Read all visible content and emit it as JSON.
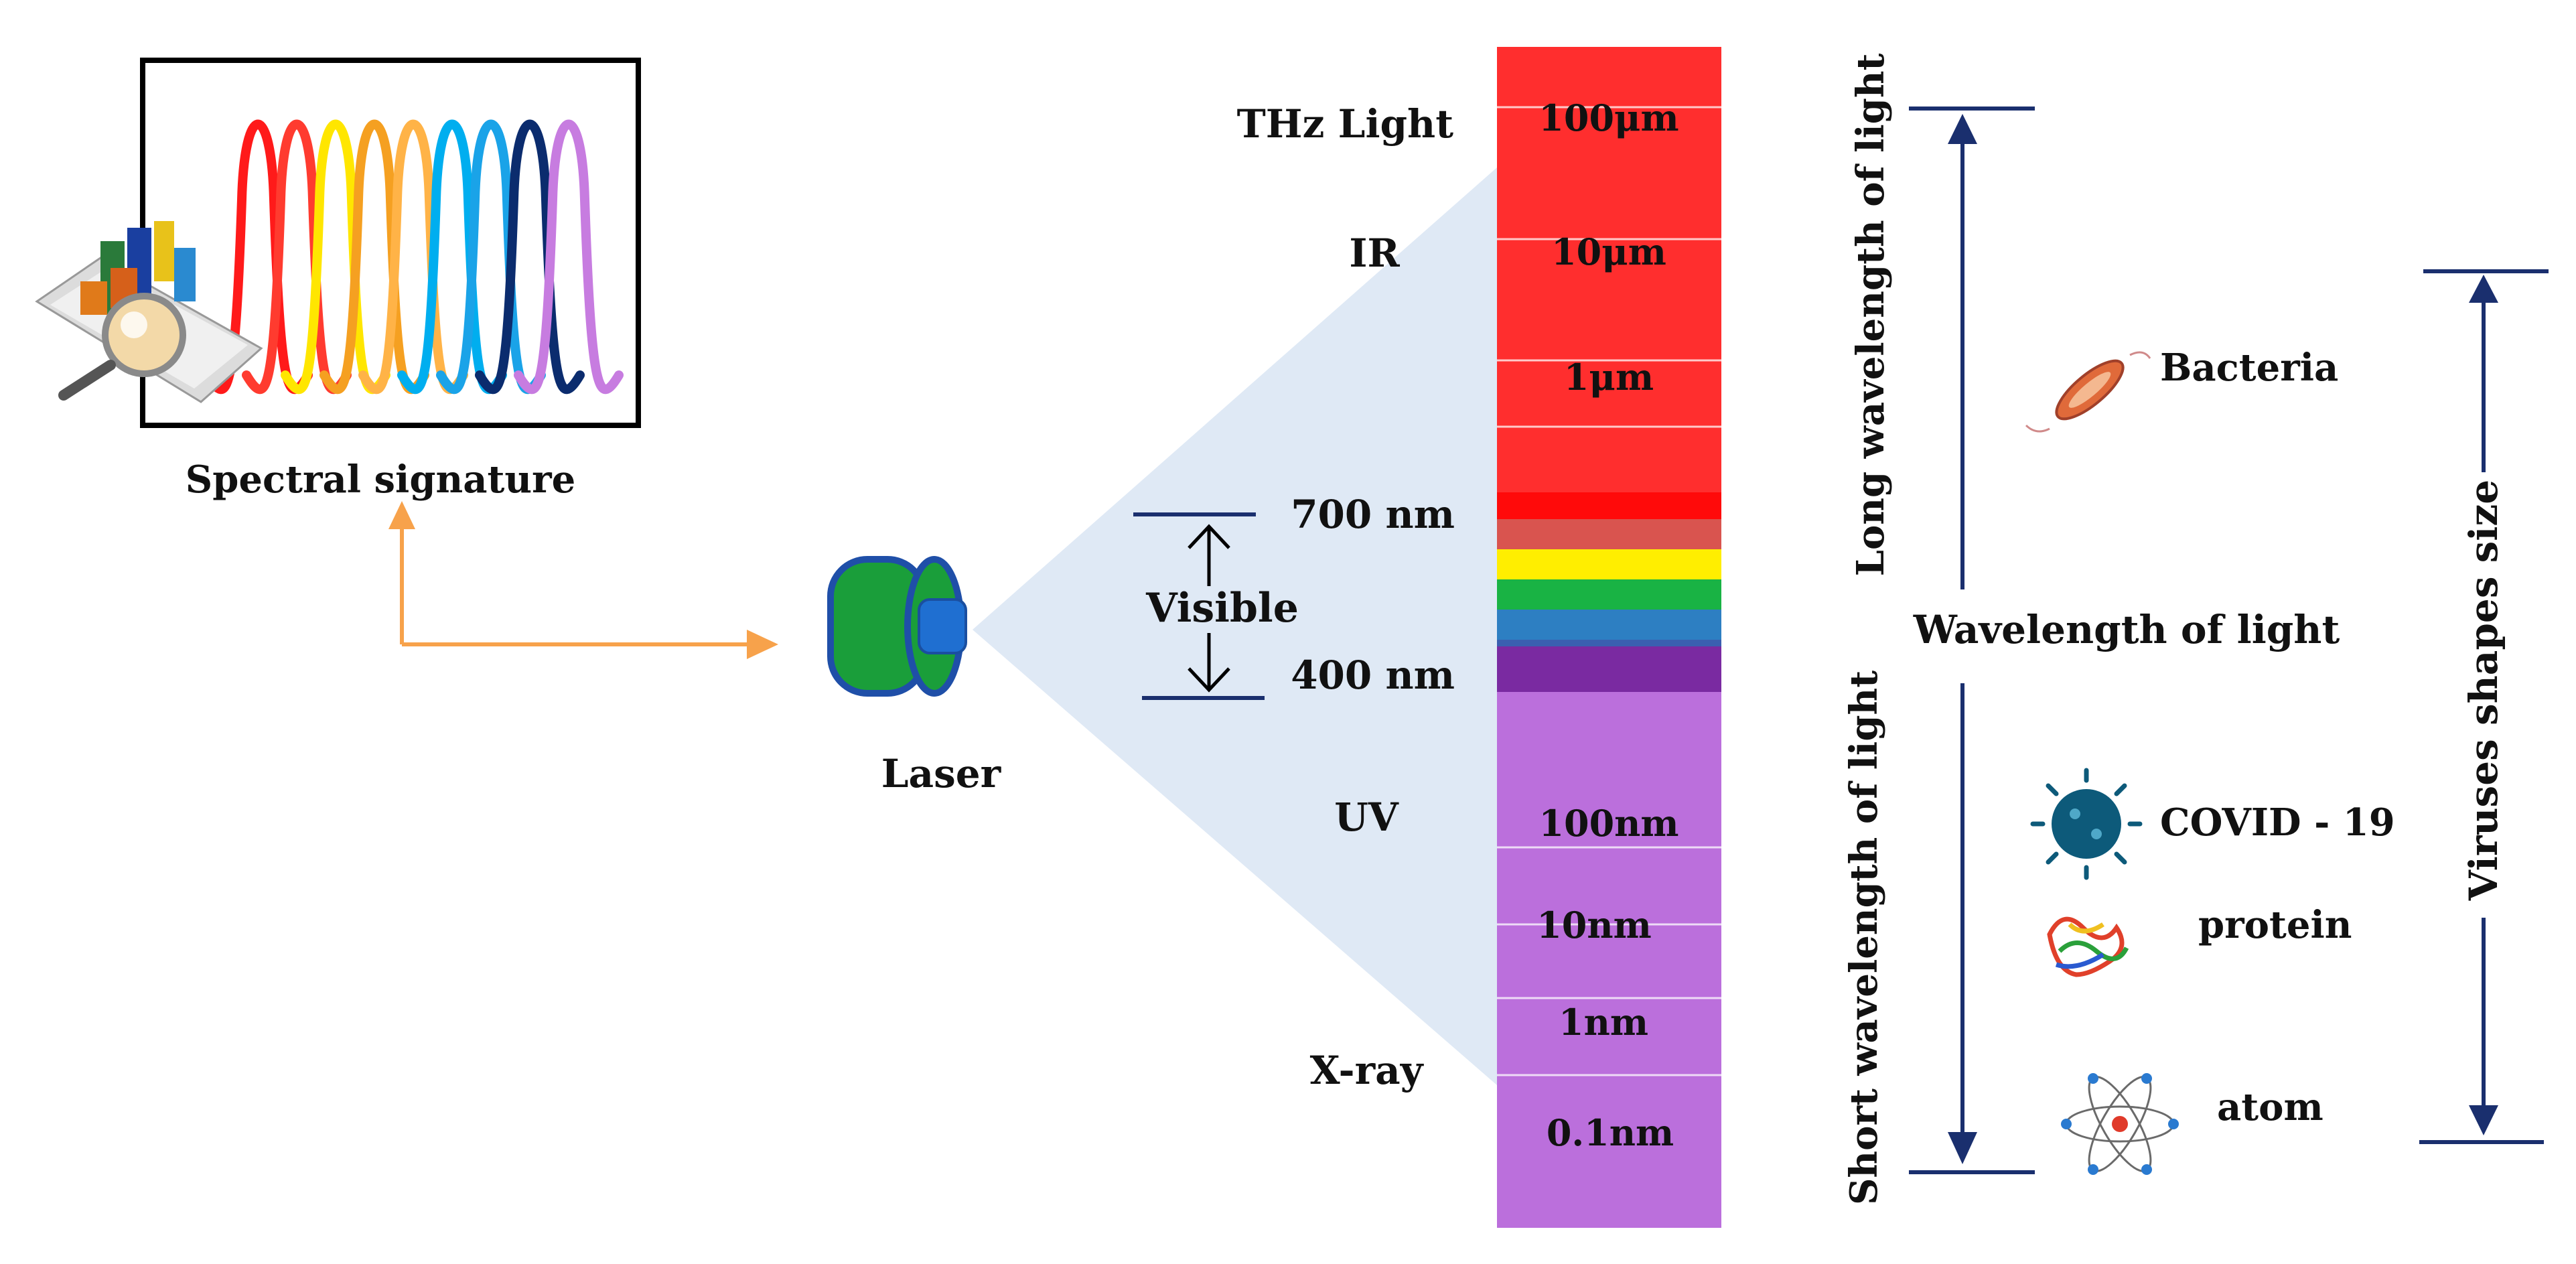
{
  "spectral": {
    "caption": "Spectral signature",
    "peak_colors": [
      "#ff1a1a",
      "#ff3b2f",
      "#ffe600",
      "#f5a021",
      "#ffb347",
      "#00aeef",
      "#1aa3e8",
      "#0b2c6e",
      "#c77ce0"
    ]
  },
  "laser": {
    "label": "Laser",
    "body_color": "#1a9e3a",
    "lens_color": "#1f6fd1"
  },
  "bands": {
    "thz": "THz Light",
    "ir": "IR",
    "visible": "Visible",
    "uv": "UV",
    "xray": "X-ray",
    "edge_700": "700 nm",
    "edge_400": "400 nm"
  },
  "scale": {
    "ticks": [
      "100μm",
      "10μm",
      "1μm",
      "100nm",
      "10nm",
      "1nm",
      "0.1nm"
    ],
    "colors": {
      "ir": "#ff2e2e",
      "visible": [
        "#ff0a0a",
        "#d9544f",
        "#ffee00",
        "#19b344",
        "#2d7fc2",
        "#3a5fb0"
      ],
      "violet": "#7a2aa1",
      "uv": "#bb6fdc"
    }
  },
  "wavelength_axis": {
    "label": "Wavelength  of light",
    "long_label": "Long wavelength of light",
    "short_label": "Short wavelength of light",
    "line_color": "#1a2f6e"
  },
  "size_axis": {
    "label": "Viruses shapes size",
    "items": [
      "Bacteria",
      "COVID - 19",
      "protein",
      "atom"
    ]
  },
  "arrow_color": "#f7a24b",
  "cone_color": "#dfe9f5"
}
